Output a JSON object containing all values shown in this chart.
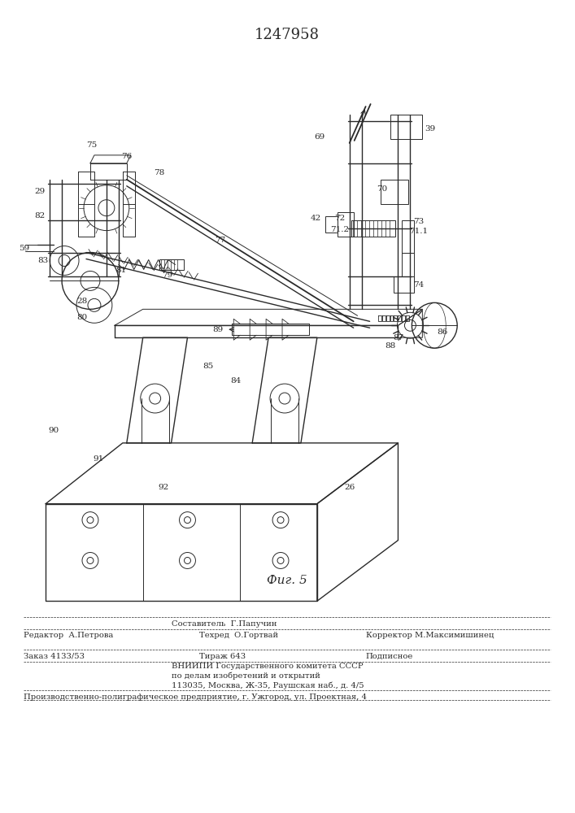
{
  "patent_number": "1247958",
  "fig_label": "Фиг. 5",
  "bg_color": "#ffffff",
  "line_color": "#2a2a2a",
  "editor_line": "Редактор  А.Петрова",
  "composer_line1": "Составитель  Г.Папучин",
  "composer_line2": "Техред  О.Гортвай",
  "corrector_line": "Корректор М.Максимишинец",
  "order_line": "Заказ 4133/53",
  "tirazh_line": "Тираж 643",
  "podpisnoe_line": "Подписное",
  "vniip_line1": "ВНИИПИ Государственного комитета СССР",
  "vniip_line2": "по делам изобретений и открытий",
  "vniip_line3": "113035, Москва, Ж-35, Раушская наб., д. 4/5",
  "factory_line": "Производственно-полиграфическое предприятие, г. Ужгород, ул. Проектная, 4"
}
